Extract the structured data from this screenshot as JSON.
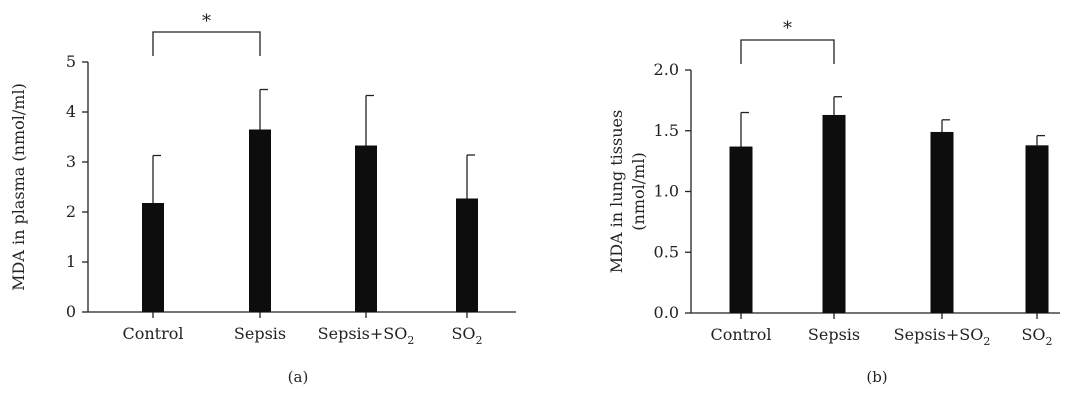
{
  "chart_data": [
    {
      "type": "bar",
      "panel_label": "(a)",
      "ylabel": "MDA in plasma (nmol/ml)",
      "ylim": [
        0,
        5
      ],
      "yticks": [
        "0",
        "1",
        "2",
        "3",
        "4",
        "5"
      ],
      "categories": [
        {
          "main": "Control",
          "sub": "",
          "tail": ""
        },
        {
          "main": "Sepsis",
          "sub": "",
          "tail": ""
        },
        {
          "main": "Sepsis+SO",
          "sub": "2",
          "tail": ""
        },
        {
          "main": "SO",
          "sub": "2",
          "tail": ""
        }
      ],
      "values": [
        2.18,
        3.65,
        3.33,
        2.27
      ],
      "errors": [
        0.95,
        0.8,
        1.0,
        0.87
      ],
      "significance": {
        "from": 0,
        "to": 1,
        "label": "*"
      }
    },
    {
      "type": "bar",
      "panel_label": "(b)",
      "ylabel_lines": [
        "MDA in lung tissues",
        "(nmol/ml)"
      ],
      "ylim": [
        0,
        2
      ],
      "yticks": [
        "0.0",
        "0.5",
        "1.0",
        "1.5",
        "2.0"
      ],
      "categories": [
        {
          "main": "Control",
          "sub": "",
          "tail": ""
        },
        {
          "main": "Sepsis",
          "sub": "",
          "tail": ""
        },
        {
          "main": "Sepsis+SO",
          "sub": "2",
          "tail": ""
        },
        {
          "main": "SO",
          "sub": "2",
          "tail": ""
        }
      ],
      "values": [
        1.37,
        1.63,
        1.49,
        1.38
      ],
      "errors": [
        0.28,
        0.15,
        0.1,
        0.08
      ],
      "significance": {
        "from": 0,
        "to": 1,
        "label": "*"
      }
    }
  ]
}
